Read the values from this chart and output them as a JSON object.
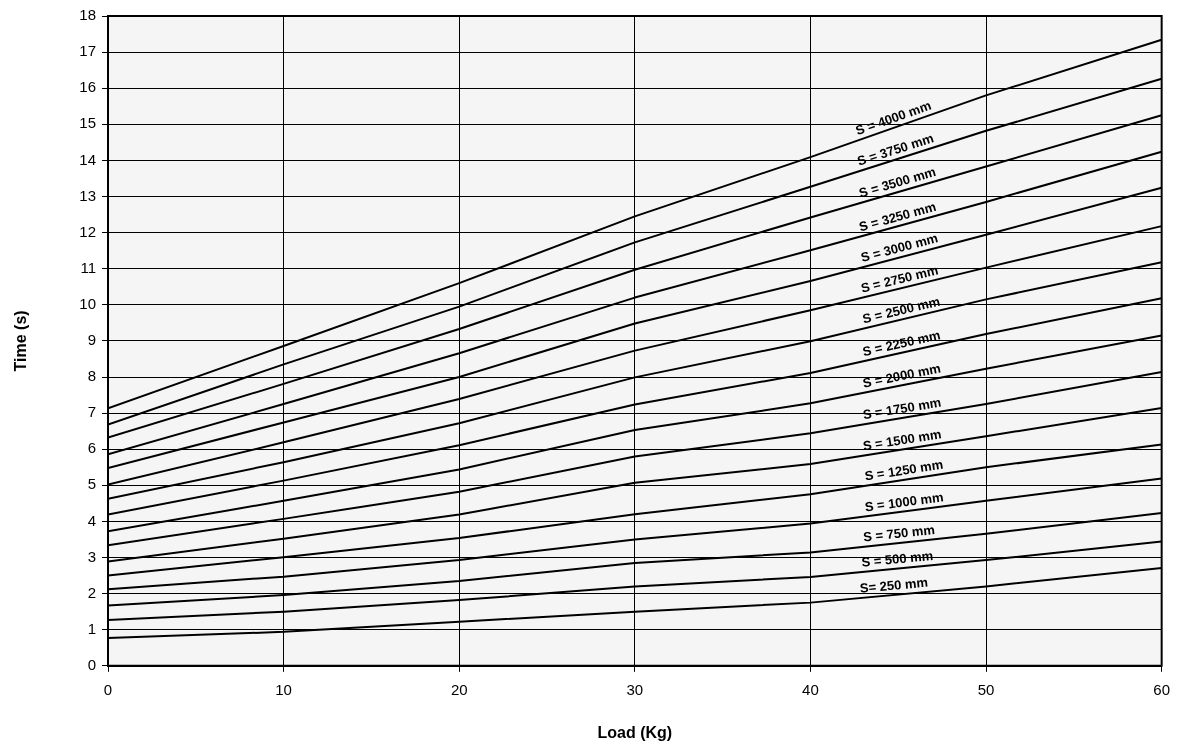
{
  "chart_data": {
    "type": "line",
    "xlabel": "Load (Kg)",
    "ylabel": "Time (s)",
    "x": [
      0,
      10,
      20,
      30,
      40,
      50,
      60
    ],
    "series": [
      {
        "color": "#000000",
        "values": [
          7.13,
          8.86,
          10.6,
          12.45,
          14.09,
          15.8,
          17.34
        ]
      },
      {
        "color": "#000000",
        "values": [
          6.68,
          8.35,
          9.95,
          11.73,
          13.27,
          14.82,
          16.26
        ]
      },
      {
        "color": "#000000",
        "values": [
          6.32,
          7.81,
          9.33,
          10.97,
          12.42,
          13.83,
          15.25
        ]
      },
      {
        "color": "#000000",
        "values": [
          5.86,
          7.25,
          8.66,
          10.2,
          11.51,
          12.85,
          14.24
        ]
      },
      {
        "color": "#000000",
        "values": [
          5.48,
          6.74,
          8.0,
          9.48,
          10.66,
          11.94,
          13.24
        ]
      },
      {
        "color": "#000000",
        "values": [
          5.02,
          6.19,
          7.39,
          8.73,
          9.85,
          11.03,
          12.18
        ]
      },
      {
        "color": "#000000",
        "values": [
          4.63,
          5.64,
          6.72,
          7.99,
          8.99,
          10.15,
          11.18
        ]
      },
      {
        "color": "#000000",
        "values": [
          4.19,
          5.13,
          6.11,
          7.24,
          8.11,
          9.19,
          10.18
        ]
      },
      {
        "color": "#000000",
        "values": [
          3.73,
          4.57,
          5.44,
          6.53,
          7.27,
          8.23,
          9.15
        ]
      },
      {
        "color": "#000000",
        "values": [
          3.34,
          4.07,
          4.82,
          5.8,
          6.44,
          7.25,
          8.14
        ]
      },
      {
        "color": "#000000",
        "values": [
          2.89,
          3.52,
          4.19,
          5.07,
          5.59,
          6.36,
          7.14
        ]
      },
      {
        "color": "#000000",
        "values": [
          2.5,
          3.01,
          3.54,
          4.2,
          4.75,
          5.5,
          6.13
        ]
      },
      {
        "color": "#000000",
        "values": [
          2.12,
          2.47,
          2.93,
          3.5,
          3.94,
          4.57,
          5.19
        ]
      },
      {
        "color": "#000000",
        "values": [
          1.67,
          1.96,
          2.35,
          2.85,
          3.14,
          3.66,
          4.23
        ]
      },
      {
        "color": "#000000",
        "values": [
          1.27,
          1.5,
          1.82,
          2.2,
          2.46,
          2.93,
          3.44
        ]
      },
      {
        "color": "#000000",
        "values": [
          0.77,
          0.94,
          1.22,
          1.5,
          1.75,
          2.2,
          2.71
        ]
      }
    ],
    "annotations": [
      {
        "text": "S = 4000 mm",
        "x": 44.9,
        "y": 14.93
      },
      {
        "text": "S = 3750 mm",
        "x": 45,
        "y": 14.05
      },
      {
        "text": "S = 3500 mm",
        "x": 45.1,
        "y": 13.14
      },
      {
        "text": "S = 3250 mm",
        "x": 45.1,
        "y": 12.19
      },
      {
        "text": "S = 3000 mm",
        "x": 45.2,
        "y": 11.33
      },
      {
        "text": "S = 2750 mm",
        "x": 45.2,
        "y": 10.46
      },
      {
        "text": "S = 2500 mm",
        "x": 45.3,
        "y": 9.6
      },
      {
        "text": "S = 2250 mm",
        "x": 45.3,
        "y": 8.68
      },
      {
        "text": "S = 2000 mm",
        "x": 45.3,
        "y": 7.78
      },
      {
        "text": "S = 1750 mm",
        "x": 45.3,
        "y": 6.87
      },
      {
        "text": "S = 1500 mm",
        "x": 45.3,
        "y": 6.0
      },
      {
        "text": "S = 1250 mm",
        "x": 45.4,
        "y": 5.16
      },
      {
        "text": "S = 1000 mm",
        "x": 45.4,
        "y": 4.28
      },
      {
        "text": "S = 750 mm",
        "x": 45.1,
        "y": 3.41
      },
      {
        "text": "S = 500 mm",
        "x": 45,
        "y": 2.7
      },
      {
        "text": "S= 250 mm",
        "x": 44.8,
        "y": 1.97
      }
    ],
    "xlim": [
      0,
      60
    ],
    "xticks": [
      0,
      10,
      20,
      30,
      40,
      50,
      60
    ],
    "ylim": [
      0,
      18
    ],
    "yticks": [
      0,
      1,
      2,
      3,
      4,
      5,
      6,
      7,
      8,
      9,
      10,
      11,
      12,
      13,
      14,
      15,
      16,
      17,
      18
    ],
    "grid": true,
    "legend": false,
    "marker": "none",
    "line_style": "solid"
  }
}
